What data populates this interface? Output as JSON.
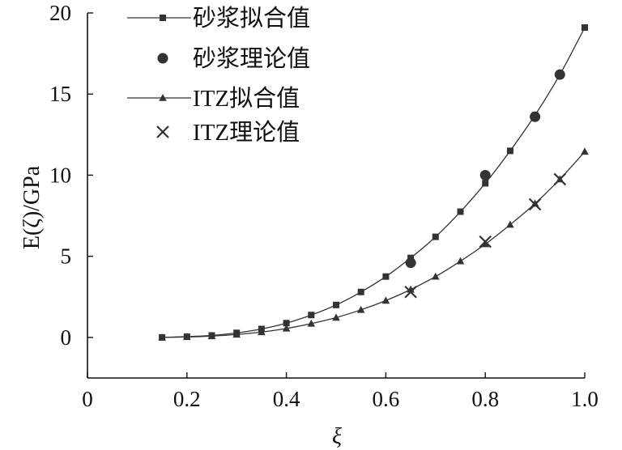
{
  "chart_data": {
    "type": "line",
    "xlabel": "ξ",
    "ylabel": "E(ζ)/GPa",
    "xlim": [
      0,
      1.0
    ],
    "ylim": [
      -2.5,
      20
    ],
    "x_ticks": [
      0,
      0.2,
      0.4,
      0.6,
      0.8,
      1.0
    ],
    "x_tick_labels": [
      "0",
      "0.2",
      "0.4",
      "0.6",
      "0.8",
      "1.0"
    ],
    "y_ticks": [
      0,
      5,
      10,
      15,
      20
    ],
    "y_tick_labels": [
      "0",
      "5",
      "10",
      "15",
      "20"
    ],
    "grid": false,
    "legend_position": "top-left",
    "series": [
      {
        "name": "砂浆拟合值",
        "marker": "square",
        "line": true,
        "color": "#333333",
        "x": [
          0.15,
          0.2,
          0.25,
          0.3,
          0.35,
          0.4,
          0.45,
          0.5,
          0.55,
          0.6,
          0.65,
          0.7,
          0.75,
          0.8,
          0.85,
          0.9,
          0.95,
          1.0
        ],
        "y": [
          0.0,
          0.05,
          0.12,
          0.28,
          0.52,
          0.88,
          1.38,
          2.0,
          2.8,
          3.75,
          4.9,
          6.2,
          7.75,
          9.5,
          11.5,
          13.7,
          16.2,
          19.1
        ]
      },
      {
        "name": "砂浆理论值",
        "marker": "circle",
        "line": false,
        "color": "#333333",
        "x": [
          0.65,
          0.8,
          0.9,
          0.95
        ],
        "y": [
          4.6,
          10.0,
          13.6,
          16.2
        ]
      },
      {
        "name": "ITZ拟合值",
        "marker": "triangle",
        "line": true,
        "color": "#333333",
        "x": [
          0.15,
          0.2,
          0.25,
          0.3,
          0.35,
          0.4,
          0.45,
          0.5,
          0.55,
          0.6,
          0.65,
          0.7,
          0.75,
          0.8,
          0.85,
          0.9,
          0.95,
          1.0
        ],
        "y": [
          0.0,
          0.03,
          0.08,
          0.18,
          0.33,
          0.55,
          0.85,
          1.22,
          1.7,
          2.27,
          2.95,
          3.75,
          4.7,
          5.75,
          6.95,
          8.25,
          9.75,
          11.45
        ]
      },
      {
        "name": "ITZ理论值",
        "marker": "cross",
        "line": false,
        "color": "#333333",
        "x": [
          0.65,
          0.8,
          0.9,
          0.95
        ],
        "y": [
          2.8,
          5.9,
          8.2,
          9.75
        ]
      }
    ]
  }
}
